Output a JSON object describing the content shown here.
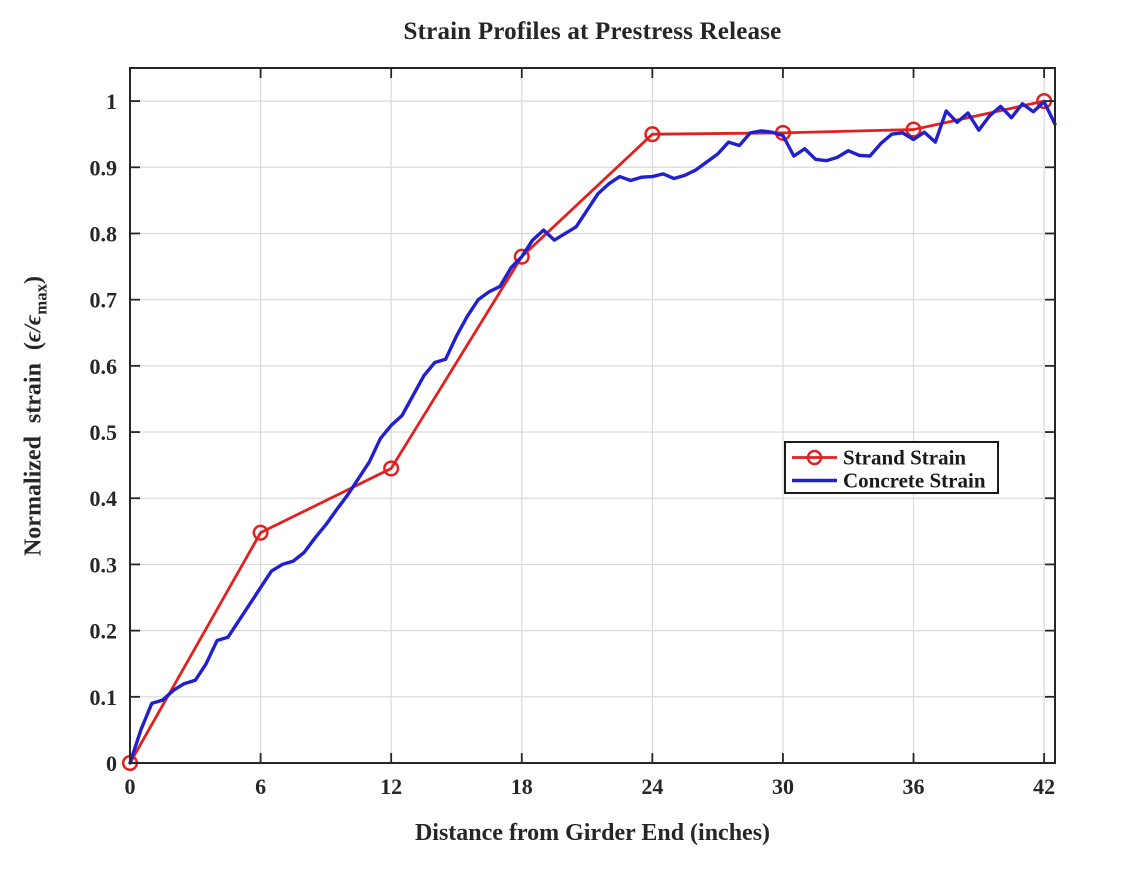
{
  "page": {
    "background": "#ffffff"
  },
  "chart_data": {
    "type": "line",
    "title": "Strain Profiles at Prestress Release",
    "xlabel": "Distance from Girder End (inches)",
    "ylabel": {
      "text": "Normalized strain (ϵ/ϵmax)",
      "pre": "Normalized strain (",
      "eps": "ϵ/ϵ",
      "sub": "max",
      "post": ")"
    },
    "xlim": [
      0,
      42.5
    ],
    "ylim": [
      0,
      1.05
    ],
    "xticks": [
      0,
      6,
      12,
      18,
      24,
      30,
      36,
      42
    ],
    "xtick_labels": [
      "0",
      "6",
      "12",
      "18",
      "24",
      "30",
      "36",
      "42"
    ],
    "yticks": [
      0,
      0.1,
      0.2,
      0.3,
      0.4,
      0.5,
      0.6,
      0.7,
      0.8,
      0.9,
      1.0
    ],
    "ytick_labels": [
      "0",
      "0.1",
      "0.2",
      "0.3",
      "0.4",
      "0.5",
      "0.6",
      "0.7",
      "0.8",
      "0.9",
      "1"
    ],
    "grid": true,
    "legend_position": "center-right",
    "colors": {
      "axis": "#262626",
      "grid": "#d9d9d9",
      "legend_border": "#1a1a1a",
      "background": "#ffffff"
    },
    "series": [
      {
        "name": "Strand Strain",
        "color": "#e32020",
        "marker": "circle-open",
        "line_width": 2.8,
        "x": [
          0,
          6,
          12,
          18,
          24,
          30,
          36,
          42
        ],
        "values": [
          0,
          0.348,
          0.445,
          0.765,
          0.95,
          0.952,
          0.957,
          1.0
        ]
      },
      {
        "name": "Concrete Strain",
        "color": "#2020cc",
        "marker": "none",
        "line_width": 3.4,
        "x": [
          0,
          0.5,
          1,
          1.5,
          2,
          2.5,
          3,
          3.5,
          4,
          4.5,
          5,
          5.5,
          6,
          6.5,
          7,
          7.5,
          8,
          8.5,
          9,
          9.5,
          10,
          10.5,
          11,
          11.5,
          12,
          12.5,
          13,
          13.5,
          14,
          14.5,
          15,
          15.5,
          16,
          16.5,
          17,
          17.5,
          18,
          18.5,
          19,
          19.5,
          20,
          20.5,
          21,
          21.5,
          22,
          22.5,
          23,
          23.5,
          24,
          24.5,
          25,
          25.5,
          26,
          26.5,
          27,
          27.5,
          28,
          28.5,
          29,
          29.5,
          30,
          30.5,
          31,
          31.5,
          32,
          32.5,
          33,
          33.5,
          34,
          34.5,
          35,
          35.5,
          36,
          36.5,
          37,
          37.5,
          38,
          38.5,
          39,
          39.5,
          40,
          40.5,
          41,
          41.5,
          42,
          42.5
        ],
        "values": [
          0,
          0.05,
          0.09,
          0.095,
          0.11,
          0.12,
          0.125,
          0.15,
          0.185,
          0.19,
          0.215,
          0.24,
          0.265,
          0.29,
          0.3,
          0.305,
          0.318,
          0.34,
          0.36,
          0.383,
          0.405,
          0.43,
          0.455,
          0.49,
          0.51,
          0.525,
          0.555,
          0.585,
          0.605,
          0.61,
          0.645,
          0.675,
          0.7,
          0.712,
          0.72,
          0.748,
          0.765,
          0.79,
          0.805,
          0.79,
          0.8,
          0.81,
          0.835,
          0.86,
          0.875,
          0.886,
          0.88,
          0.885,
          0.886,
          0.89,
          0.883,
          0.888,
          0.896,
          0.908,
          0.92,
          0.938,
          0.933,
          0.952,
          0.955,
          0.953,
          0.948,
          0.917,
          0.928,
          0.912,
          0.91,
          0.915,
          0.925,
          0.918,
          0.917,
          0.936,
          0.95,
          0.952,
          0.942,
          0.953,
          0.938,
          0.985,
          0.968,
          0.982,
          0.956,
          0.978,
          0.992,
          0.975,
          0.996,
          0.984,
          0.999,
          0.965
        ]
      }
    ]
  }
}
